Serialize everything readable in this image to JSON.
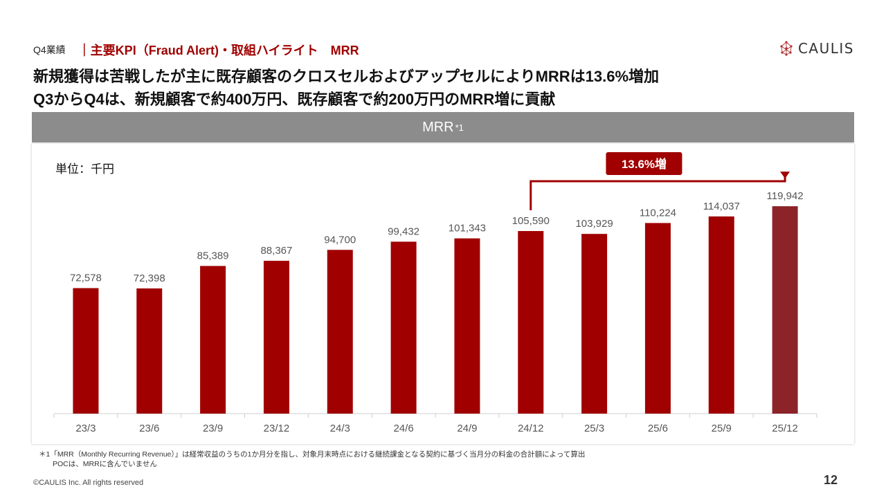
{
  "header": {
    "section": "Q4業績",
    "topic": "｜主要KPI（Fraud Alert)・取組ハイライト　MRR"
  },
  "logo": {
    "text": "CAULIS",
    "icon": "network-dots-icon"
  },
  "headline": {
    "line1": "新規獲得は苦戦したが主に既存顧客のクロスセルおよびアップセルによりMRRは13.6%増加",
    "line2": "Q3からQ4は、新規顧客で約400万円、既存顧客で約200万円のMRR増に貢献"
  },
  "banner": {
    "title": "MRR",
    "note_mark": "*1"
  },
  "unit_label": "単位：千円",
  "colors": {
    "bar": "#a00000",
    "bar_highlight": "#8b2328",
    "accent": "#a00000",
    "banner_bg": "#8c8c8c"
  },
  "chart_data": {
    "type": "bar",
    "title": "MRR",
    "categories": [
      "23/3",
      "23/6",
      "23/9",
      "23/12",
      "24/3",
      "24/6",
      "24/9",
      "24/12",
      "25/3",
      "25/6",
      "25/9",
      "25/12"
    ],
    "values": [
      72578,
      72398,
      85389,
      88367,
      94700,
      99432,
      101343,
      105590,
      103929,
      110224,
      114037,
      119942
    ],
    "value_labels": [
      "72,578",
      "72,398",
      "85,389",
      "88,367",
      "94,700",
      "99,432",
      "101,343",
      "105,590",
      "103,929",
      "110,224",
      "114,037",
      "119,942"
    ],
    "ylim": [
      0,
      140000
    ],
    "highlight_index": 11,
    "annotation": {
      "text": "13.6%増",
      "from_category": "24/12",
      "to_category": "25/12"
    },
    "grid": false
  },
  "footnote": {
    "line1": "＊1「MRR（Monthly Recurring Revenue）」は経常収益のうちの1か月分を指し、対象月末時点における継続課金となる契約に基づく当月分の料金の合計額によって算出",
    "line2": "POCは、MRRに含んでいません"
  },
  "copyright": "©CAULIS Inc. All rights reserved",
  "page_number": "12"
}
